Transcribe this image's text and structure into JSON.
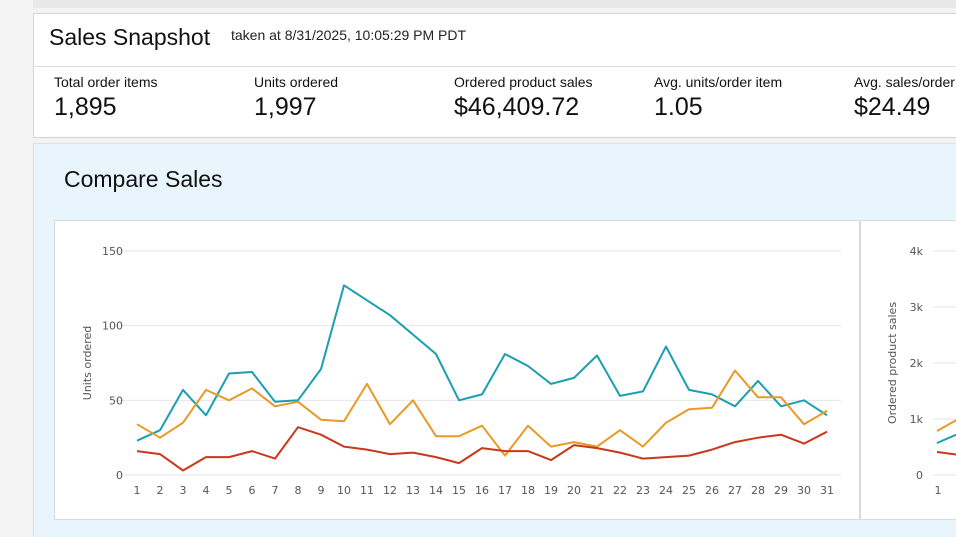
{
  "snapshot": {
    "title": "Sales Snapshot",
    "timestamp": "taken at 8/31/2025, 10:05:29 PM PDT",
    "metrics": [
      {
        "label": "Total order items",
        "value": "1,895"
      },
      {
        "label": "Units ordered",
        "value": "1,997"
      },
      {
        "label": "Ordered product sales",
        "value": "$46,409.72"
      },
      {
        "label": "Avg. units/order item",
        "value": "1.05"
      },
      {
        "label": "Avg. sales/order",
        "value": "$24.49"
      }
    ]
  },
  "compare": {
    "title": "Compare Sales"
  },
  "chart_data": [
    {
      "type": "line",
      "ylabel": "Units ordered",
      "ylim": [
        0,
        150
      ],
      "yticks": [
        "0",
        "50",
        "100",
        "150"
      ],
      "x": [
        "1",
        "2",
        "3",
        "4",
        "5",
        "6",
        "7",
        "8",
        "9",
        "10",
        "11",
        "12",
        "13",
        "14",
        "15",
        "16",
        "17",
        "18",
        "19",
        "20",
        "21",
        "22",
        "23",
        "24",
        "25",
        "26",
        "27",
        "28",
        "29",
        "30",
        "31"
      ],
      "grid": true,
      "series": [
        {
          "color": "#1a9fb0",
          "values": [
            23,
            30,
            57,
            40,
            68,
            69,
            49,
            50,
            71,
            127,
            117,
            107,
            94,
            81,
            50,
            54,
            81,
            73,
            61,
            65,
            80,
            53,
            56,
            86,
            57,
            54,
            46,
            63,
            46,
            50,
            40
          ]
        },
        {
          "color": "#e89a26",
          "values": [
            34,
            25,
            35,
            57,
            50,
            58,
            46,
            49,
            37,
            36,
            61,
            34,
            50,
            26,
            26,
            33,
            13,
            33,
            19,
            22,
            19,
            30,
            19,
            35,
            44,
            45,
            70,
            52,
            52,
            34,
            43
          ]
        },
        {
          "color": "#c8391c",
          "values": [
            16,
            14,
            3,
            12,
            12,
            16,
            11,
            32,
            27,
            19,
            17,
            14,
            15,
            12,
            8,
            18,
            16,
            16,
            10,
            20,
            18,
            15,
            11,
            12,
            13,
            17,
            22,
            25,
            27,
            21,
            29
          ]
        }
      ]
    },
    {
      "type": "line",
      "ylabel": "Ordered product sales",
      "ylim": [
        0,
        4000
      ],
      "yticks": [
        "0",
        "1k",
        "2k",
        "3k",
        "4k"
      ],
      "x": [
        "1"
      ],
      "grid": true
    }
  ]
}
